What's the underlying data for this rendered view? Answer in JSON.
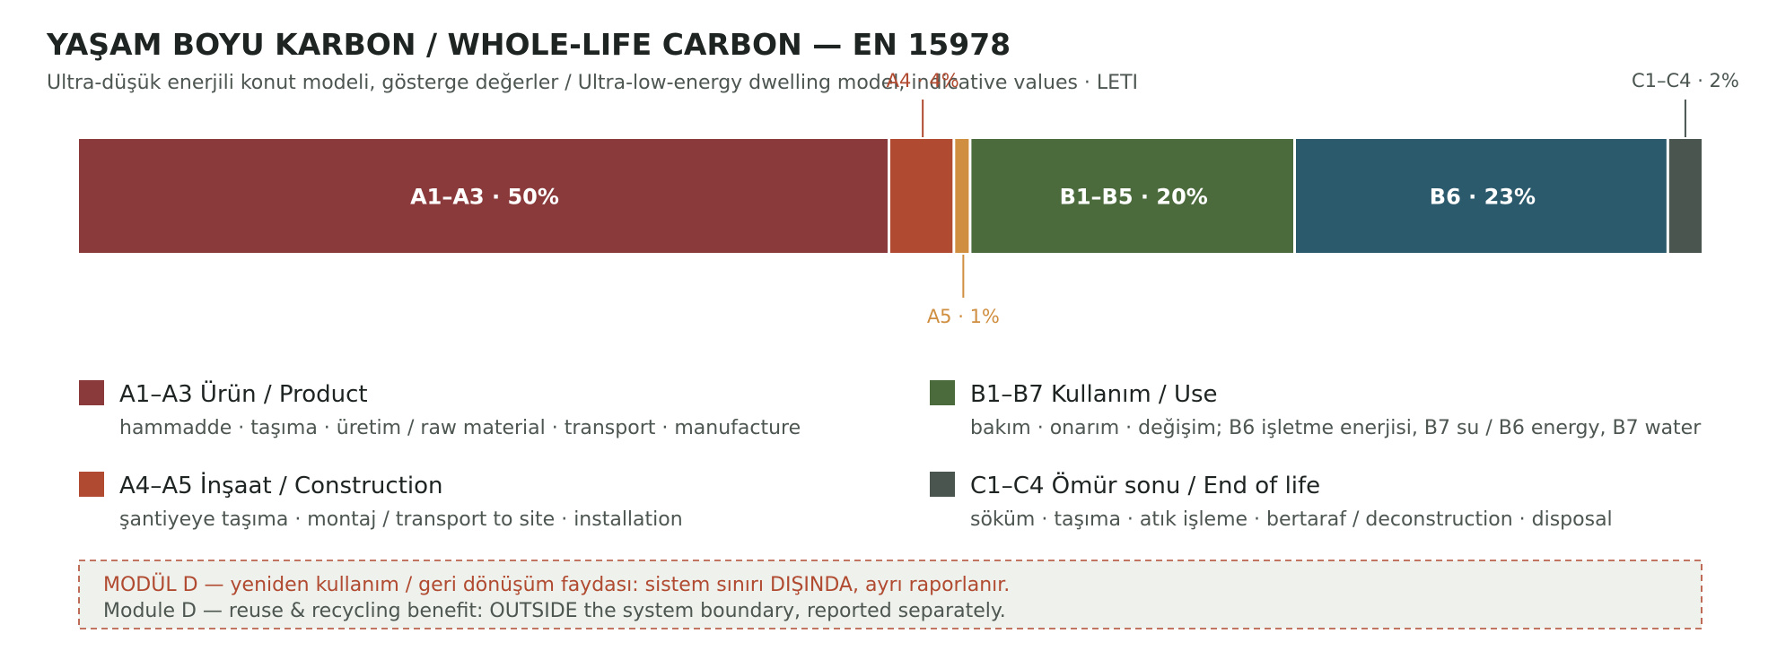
{
  "title": "YAŞAM BOYU KARBON / WHOLE-LIFE CARBON — EN 15978",
  "subtitle": "Ultra-düşük enerjili konut modeli, gösterge değerler / Ultra-low-energy dwelling model, indicative values · LETI",
  "chart_data": {
    "type": "bar",
    "orientation": "horizontal-stacked",
    "unit": "%",
    "segments": [
      {
        "label": "A1–A3 · 50%",
        "value": 50,
        "color": "#8b3a3c",
        "label_position": "inside"
      },
      {
        "label": "A4 · 4%",
        "value": 4,
        "color": "#b04a30",
        "label_position": "above"
      },
      {
        "label": "A5 · 1%",
        "value": 1,
        "color": "#cf8e40",
        "label_position": "below"
      },
      {
        "label": "B1–B5 · 20%",
        "value": 20,
        "color": "#4b6b3c",
        "label_position": "inside"
      },
      {
        "label": "B6 · 23%",
        "value": 23,
        "color": "#2b5a6c",
        "label_position": "inside"
      },
      {
        "label": "C1–C4 · 2%",
        "value": 2,
        "color": "#4a5550",
        "label_position": "above"
      }
    ]
  },
  "legend": [
    {
      "title": "A1–A3 Ürün / Product",
      "desc": "hammadde · taşıma · üretim / raw material · transport · manufacture",
      "color": "#8b3a3c"
    },
    {
      "title": "B1–B7 Kullanım / Use",
      "desc": "bakım · onarım · değişim; B6 işletme enerjisi, B7 su / B6 energy, B7 water",
      "color": "#4b6b3c"
    },
    {
      "title": "A4–A5 İnşaat / Construction",
      "desc": "şantiyeye taşıma · montaj / transport to site · installation",
      "color": "#b04a30"
    },
    {
      "title": "C1–C4 Ömür sonu / End of life",
      "desc": "söküm · taşıma · atık işleme · bertaraf / deconstruction · disposal",
      "color": "#4a5550"
    }
  ],
  "note": {
    "line1": "MODÜL D — yeniden kullanım / geri dönüşüm faydası: sistem sınırı DIŞINDA, ayrı raporlanır.",
    "line2": "Module D — reuse & recycling benefit: OUTSIDE the system boundary, reported separately.",
    "line1_color": "#b04a30",
    "line2_color": "#4d5651"
  }
}
